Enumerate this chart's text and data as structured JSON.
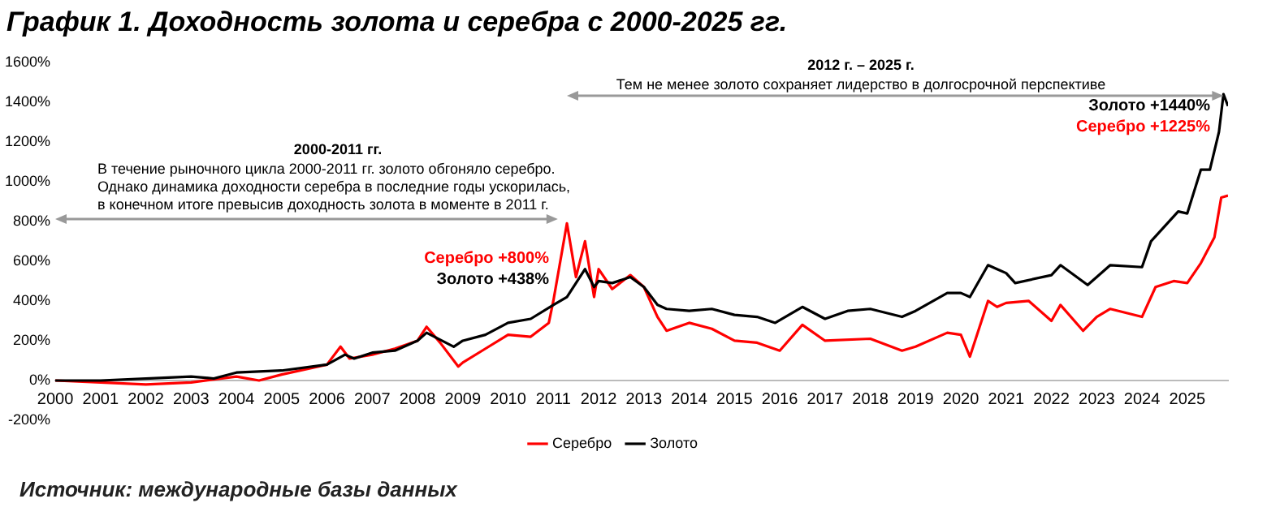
{
  "chart_data": {
    "type": "line",
    "title": "График 1. Доходность золота и серебра с 2000-2025 гг.",
    "xlim": [
      2000,
      2025.9
    ],
    "xticks": [
      2000,
      2001,
      2002,
      2003,
      2004,
      2005,
      2006,
      2007,
      2008,
      2009,
      2010,
      2011,
      2012,
      2013,
      2014,
      2015,
      2016,
      2017,
      2018,
      2019,
      2020,
      2021,
      2022,
      2023,
      2024,
      2025
    ],
    "ylim": [
      -200,
      1600
    ],
    "yticks": [
      {
        "value": -200,
        "label": "-200%"
      },
      {
        "value": 0,
        "label": "0%"
      },
      {
        "value": 200,
        "label": "200%"
      },
      {
        "value": 400,
        "label": "400%"
      },
      {
        "value": 600,
        "label": "600%"
      },
      {
        "value": 800,
        "label": "800%"
      },
      {
        "value": 1000,
        "label": "1000%"
      },
      {
        "value": 1200,
        "label": "1200%"
      },
      {
        "value": 1400,
        "label": "1400%"
      },
      {
        "value": 1600,
        "label": "1600%"
      }
    ],
    "grid": false,
    "legend": "bottom",
    "marker": "none",
    "line_style": "solid",
    "series": [
      {
        "name": "Серебро",
        "color": "#ff0000",
        "x": [
          2000,
          2001,
          2002,
          2003,
          2004,
          2004.5,
          2005,
          2006,
          2006.3,
          2006.5,
          2007,
          2007.5,
          2008,
          2008.2,
          2008.5,
          2008.9,
          2009,
          2009.5,
          2010,
          2010.5,
          2010.9,
          2011,
          2011.3,
          2011.5,
          2011.7,
          2011.9,
          2012,
          2012.3,
          2012.7,
          2013,
          2013.3,
          2013.5,
          2014,
          2014.5,
          2015,
          2015.5,
          2016,
          2016.5,
          2017,
          2018,
          2018.7,
          2019,
          2019.7,
          2020,
          2020.2,
          2020.6,
          2020.8,
          2021,
          2021.5,
          2022,
          2022.2,
          2022.7,
          2023,
          2023.3,
          2024,
          2024.3,
          2024.7,
          2025,
          2025.3,
          2025.6,
          2025.75,
          2025.9
        ],
        "values": [
          0,
          -10,
          -20,
          -10,
          20,
          0,
          30,
          80,
          170,
          110,
          130,
          160,
          200,
          270,
          190,
          70,
          90,
          160,
          230,
          220,
          290,
          400,
          790,
          520,
          700,
          420,
          560,
          460,
          530,
          470,
          320,
          250,
          290,
          260,
          200,
          190,
          150,
          280,
          200,
          210,
          150,
          170,
          240,
          230,
          120,
          400,
          370,
          390,
          400,
          300,
          380,
          250,
          320,
          360,
          320,
          470,
          500,
          490,
          590,
          720,
          920,
          930
        ]
      },
      {
        "name": "Золото",
        "color": "#000000",
        "x": [
          2000,
          2001,
          2002,
          2003,
          2003.5,
          2004,
          2005,
          2006,
          2006.4,
          2006.6,
          2007,
          2007.5,
          2008,
          2008.2,
          2008.8,
          2009,
          2009.5,
          2010,
          2010.5,
          2011,
          2011.3,
          2011.7,
          2011.9,
          2012,
          2012.3,
          2012.7,
          2013,
          2013.3,
          2013.5,
          2014,
          2014.5,
          2015,
          2015.5,
          2015.9,
          2016.5,
          2017,
          2017.5,
          2018,
          2018.7,
          2019,
          2019.7,
          2020,
          2020.2,
          2020.6,
          2020.8,
          2021,
          2021.2,
          2022,
          2022.2,
          2022.8,
          2023,
          2023.3,
          2024,
          2024.2,
          2024.8,
          2025,
          2025.3,
          2025.5,
          2025.7,
          2025.8,
          2025.9
        ],
        "values": [
          0,
          0,
          10,
          20,
          10,
          40,
          50,
          80,
          130,
          110,
          140,
          150,
          200,
          240,
          170,
          200,
          230,
          290,
          310,
          380,
          420,
          560,
          470,
          500,
          490,
          520,
          470,
          380,
          360,
          350,
          360,
          330,
          320,
          290,
          370,
          310,
          350,
          360,
          320,
          350,
          440,
          440,
          420,
          580,
          560,
          540,
          490,
          530,
          580,
          480,
          520,
          580,
          570,
          700,
          850,
          840,
          1060,
          1060,
          1250,
          1440,
          1380
        ]
      }
    ],
    "annotations": [
      "2000-2011 гг.",
      "В течение рыночного цикла 2000-2011 гг. золото обгоняло серебро.",
      "Однако динамика доходности серебра в последние годы ускорилась,",
      "в конечном итоге превысив доходность золота в моменте в 2011 г.",
      "2012 г. – 2025 г.",
      "Тем не менее золото сохраняет лидерство в долгосрочной перспективе",
      "Серебро +800%",
      "Золото +438%",
      "Золото +1440%",
      "Серебро +1225%",
      "Источник: международные базы данных"
    ]
  }
}
